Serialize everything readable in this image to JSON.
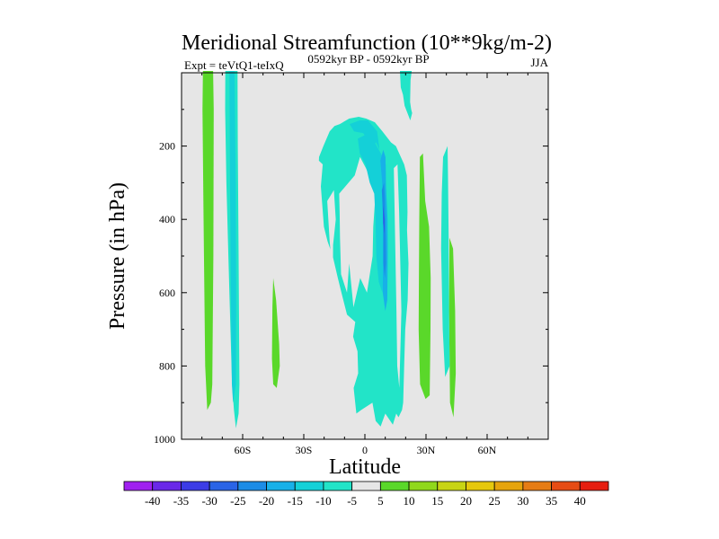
{
  "chart_data": {
    "type": "contour",
    "title": "Meridional Streamfunction (10**9kg/m-2)",
    "left_string": "Expt = teVtQ1-teIxQ",
    "center_string": "0592kyr BP - 0592kyr BP",
    "right_string": "JJA",
    "xlabel": "Latitude",
    "ylabel": "Pressure (in hPa)",
    "xlim": [
      -90,
      90
    ],
    "ylim": [
      1000,
      0
    ],
    "x_ticks": [
      {
        "value": -60,
        "label": "60S"
      },
      {
        "value": -30,
        "label": "30S"
      },
      {
        "value": 0,
        "label": "0"
      },
      {
        "value": 30,
        "label": "30N"
      },
      {
        "value": 60,
        "label": "60N"
      }
    ],
    "y_ticks": [
      {
        "value": 200,
        "label": "200"
      },
      {
        "value": 400,
        "label": "400"
      },
      {
        "value": 600,
        "label": "600"
      },
      {
        "value": 800,
        "label": "800"
      },
      {
        "value": 1000,
        "label": "1000"
      }
    ],
    "background_color": "#e6e6e6",
    "colorbar": {
      "levels": [
        "-40",
        "-35",
        "-30",
        "-25",
        "-20",
        "-15",
        "-10",
        "-5",
        "5",
        "10",
        "15",
        "20",
        "25",
        "30",
        "35",
        "40"
      ],
      "colors": [
        "#a020f0",
        "#6a28e8",
        "#3c3ce6",
        "#2a64e6",
        "#1c8ce6",
        "#18b0e8",
        "#14d0d8",
        "#22e4c8",
        "#e6e6e6",
        "#5ad82a",
        "#90d81c",
        "#c8d414",
        "#e6c80c",
        "#e6a40c",
        "#e67c14",
        "#e64c14",
        "#e61e10"
      ]
    },
    "regions": [
      {
        "name": "green-band-70s",
        "color_index": 9,
        "points": [
          [
            -79.5,
            -5
          ],
          [
            -74.5,
            -5
          ],
          [
            -74.2,
            100
          ],
          [
            -74.4,
            500
          ],
          [
            -74.9,
            850
          ],
          [
            -75.6,
            900
          ],
          [
            -77.4,
            920
          ],
          [
            -78.4,
            800
          ],
          [
            -79.2,
            400
          ],
          [
            -79.7,
            100
          ]
        ]
      },
      {
        "name": "cyan-band-65s",
        "color_index": 7,
        "points": [
          [
            -68.5,
            -5
          ],
          [
            -62.5,
            -5
          ],
          [
            -62.4,
            200
          ],
          [
            -62,
            500
          ],
          [
            -61.6,
            850
          ],
          [
            -62,
            930
          ],
          [
            -63.3,
            970
          ],
          [
            -64.3,
            920
          ],
          [
            -65.2,
            850
          ],
          [
            -66,
            700
          ],
          [
            -67,
            500
          ],
          [
            -68,
            300
          ],
          [
            -68.6,
            100
          ]
        ]
      },
      {
        "name": "blue-core-65s",
        "color_index": 6,
        "points": [
          [
            -66.5,
            -5
          ],
          [
            -64,
            -5
          ],
          [
            -63.4,
            300
          ],
          [
            -63.2,
            600
          ],
          [
            -63.3,
            850
          ],
          [
            -64.7,
            900
          ],
          [
            -65.3,
            850
          ],
          [
            -65.8,
            600
          ],
          [
            -66.2,
            300
          ]
        ]
      },
      {
        "name": "green-blob-40s",
        "color_index": 9,
        "points": [
          [
            -45,
            560
          ],
          [
            -43.6,
            620
          ],
          [
            -42.1,
            740
          ],
          [
            -41.8,
            800
          ],
          [
            -43.3,
            860
          ],
          [
            -45,
            850
          ],
          [
            -45.6,
            780
          ],
          [
            -45.4,
            640
          ]
        ]
      },
      {
        "name": "green-band-25n",
        "color_index": 9,
        "points": [
          [
            27,
            230
          ],
          [
            28.5,
            220
          ],
          [
            29.6,
            350
          ],
          [
            31.5,
            420
          ],
          [
            32.3,
            560
          ],
          [
            32.2,
            700
          ],
          [
            31.8,
            880
          ],
          [
            29.8,
            890
          ],
          [
            27.1,
            850
          ],
          [
            26.4,
            700
          ],
          [
            26.5,
            560
          ],
          [
            26.7,
            400
          ]
        ]
      },
      {
        "name": "green-blob-45n",
        "color_index": 9,
        "points": [
          [
            41.5,
            450
          ],
          [
            43.3,
            480
          ],
          [
            44.3,
            650
          ],
          [
            44.6,
            820
          ],
          [
            43.5,
            940
          ],
          [
            41.8,
            900
          ],
          [
            41.6,
            800
          ],
          [
            41.3,
            650
          ]
        ]
      },
      {
        "name": "cyan-blob-45n",
        "color_index": 7,
        "points": [
          [
            38.4,
            230
          ],
          [
            40.6,
            200
          ],
          [
            40.8,
            290
          ],
          [
            41.1,
            450
          ],
          [
            41.3,
            650
          ],
          [
            41.6,
            800
          ],
          [
            39.4,
            830
          ],
          [
            38.2,
            700
          ],
          [
            37.4,
            480
          ],
          [
            37.7,
            330
          ]
        ]
      },
      {
        "name": "cyan-top-20n",
        "color_index": 7,
        "points": [
          [
            17.2,
            -5
          ],
          [
            23,
            -5
          ],
          [
            22.4,
            20
          ],
          [
            22.2,
            80
          ],
          [
            22.7,
            100
          ],
          [
            23.2,
            110
          ],
          [
            22.3,
            130
          ],
          [
            19.5,
            90
          ],
          [
            18.7,
            60
          ],
          [
            17.6,
            40
          ]
        ]
      },
      {
        "name": "tropical-cell-outer",
        "color_index": 7,
        "points": [
          [
            -22.5,
            230
          ],
          [
            -20.4,
            200
          ],
          [
            -17.3,
            160
          ],
          [
            -14.9,
            145
          ],
          [
            -12.3,
            140
          ],
          [
            -7.7,
            125
          ],
          [
            -3,
            120
          ],
          [
            0.6,
            125
          ],
          [
            4.9,
            135
          ],
          [
            8.6,
            160
          ],
          [
            12.8,
            190
          ],
          [
            15.2,
            200
          ],
          [
            19.3,
            250
          ],
          [
            20.6,
            280
          ],
          [
            20.9,
            380
          ],
          [
            20.7,
            430
          ],
          [
            21.4,
            520
          ],
          [
            21,
            620
          ],
          [
            19.8,
            700
          ],
          [
            19.3,
            800
          ],
          [
            18.8,
            900
          ],
          [
            18.2,
            920
          ],
          [
            16.5,
            940
          ],
          [
            15.4,
            930
          ],
          [
            13.7,
            960
          ],
          [
            10,
            930
          ],
          [
            7.7,
            965
          ],
          [
            5.3,
            950
          ],
          [
            3.7,
            900
          ],
          [
            -1.8,
            920
          ],
          [
            -4.2,
            930
          ],
          [
            -5.5,
            860
          ],
          [
            -3.3,
            820
          ],
          [
            -3.6,
            760
          ],
          [
            -5.8,
            720
          ],
          [
            -4.7,
            680
          ],
          [
            -8.8,
            660
          ],
          [
            -11.5,
            600
          ],
          [
            -13.3,
            560
          ],
          [
            -15.8,
            500
          ],
          [
            -18.3,
            460
          ],
          [
            -20.1,
            420
          ],
          [
            -21.6,
            310
          ],
          [
            -20.7,
            250
          ],
          [
            -22.6,
            240
          ]
        ]
      },
      {
        "name": "tropical-hole-left",
        "color_index": 8,
        "points": [
          [
            -18.5,
            350
          ],
          [
            -15.2,
            320
          ],
          [
            -14.3,
            400
          ],
          [
            -15.6,
            470
          ],
          [
            -15.7,
            560
          ],
          [
            -17.3,
            460
          ]
        ]
      },
      {
        "name": "tropical-hole-center",
        "color_index": 8,
        "points": [
          [
            -12.6,
            330
          ],
          [
            -5,
            280
          ],
          [
            -2.4,
            230
          ],
          [
            0.5,
            260
          ],
          [
            3.8,
            300
          ],
          [
            5.2,
            330
          ],
          [
            4.1,
            420
          ],
          [
            3.8,
            500
          ],
          [
            1,
            600
          ],
          [
            -2.3,
            560
          ],
          [
            -5.6,
            640
          ],
          [
            -7.7,
            520
          ],
          [
            -8.8,
            600
          ],
          [
            -11.7,
            550
          ],
          [
            -12.2,
            450
          ],
          [
            -12.4,
            380
          ]
        ]
      },
      {
        "name": "tropical-hole-right",
        "color_index": 8,
        "points": [
          [
            14.2,
            260
          ],
          [
            16,
            250
          ],
          [
            16.8,
            380
          ],
          [
            17.9,
            650
          ],
          [
            17.3,
            780
          ],
          [
            16.9,
            860
          ],
          [
            15.9,
            800
          ],
          [
            15.5,
            650
          ]
        ]
      },
      {
        "name": "upper-cell-15",
        "color_index": 6,
        "points": [
          [
            -7.5,
            140
          ],
          [
            -2.5,
            130
          ],
          [
            1.5,
            130
          ],
          [
            6,
            160
          ],
          [
            7.2,
            210
          ],
          [
            5.5,
            190
          ],
          [
            3.5,
            200
          ],
          [
            -0.8,
            165
          ],
          [
            -5.3,
            160
          ]
        ]
      },
      {
        "name": "shallow-band-15",
        "color_index": 6,
        "points": [
          [
            -3.5,
            180
          ],
          [
            0,
            170
          ],
          [
            4.3,
            185
          ],
          [
            8.8,
            230
          ],
          [
            10.3,
            250
          ],
          [
            10.4,
            390
          ],
          [
            9.5,
            550
          ],
          [
            8.6,
            600
          ],
          [
            6.8,
            570
          ],
          [
            5.6,
            500
          ],
          [
            5.2,
            400
          ],
          [
            4.6,
            330
          ],
          [
            2.4,
            300
          ],
          [
            0.3,
            250
          ],
          [
            -2.5,
            220
          ]
        ]
      },
      {
        "name": "core-cell-20",
        "color_index": 5,
        "points": [
          [
            7.6,
            240
          ],
          [
            9,
            210
          ],
          [
            10.1,
            230
          ],
          [
            10.3,
            300
          ],
          [
            11.1,
            400
          ],
          [
            11.2,
            500
          ],
          [
            11,
            620
          ],
          [
            10,
            650
          ],
          [
            8.8,
            600
          ],
          [
            8.9,
            500
          ],
          [
            9,
            400
          ],
          [
            8.5,
            300
          ]
        ]
      },
      {
        "name": "core-cell-25",
        "color_index": 4,
        "points": [
          [
            8.3,
            320
          ],
          [
            9.4,
            300
          ],
          [
            9.8,
            340
          ],
          [
            10.3,
            460
          ],
          [
            10.4,
            520
          ],
          [
            9.8,
            560
          ],
          [
            9.1,
            520
          ],
          [
            9,
            400
          ]
        ]
      },
      {
        "name": "core-cell-30",
        "color_index": 3,
        "points": [
          [
            8.8,
            360
          ],
          [
            9.8,
            400
          ],
          [
            9.6,
            440
          ],
          [
            8.9,
            410
          ]
        ]
      }
    ]
  }
}
